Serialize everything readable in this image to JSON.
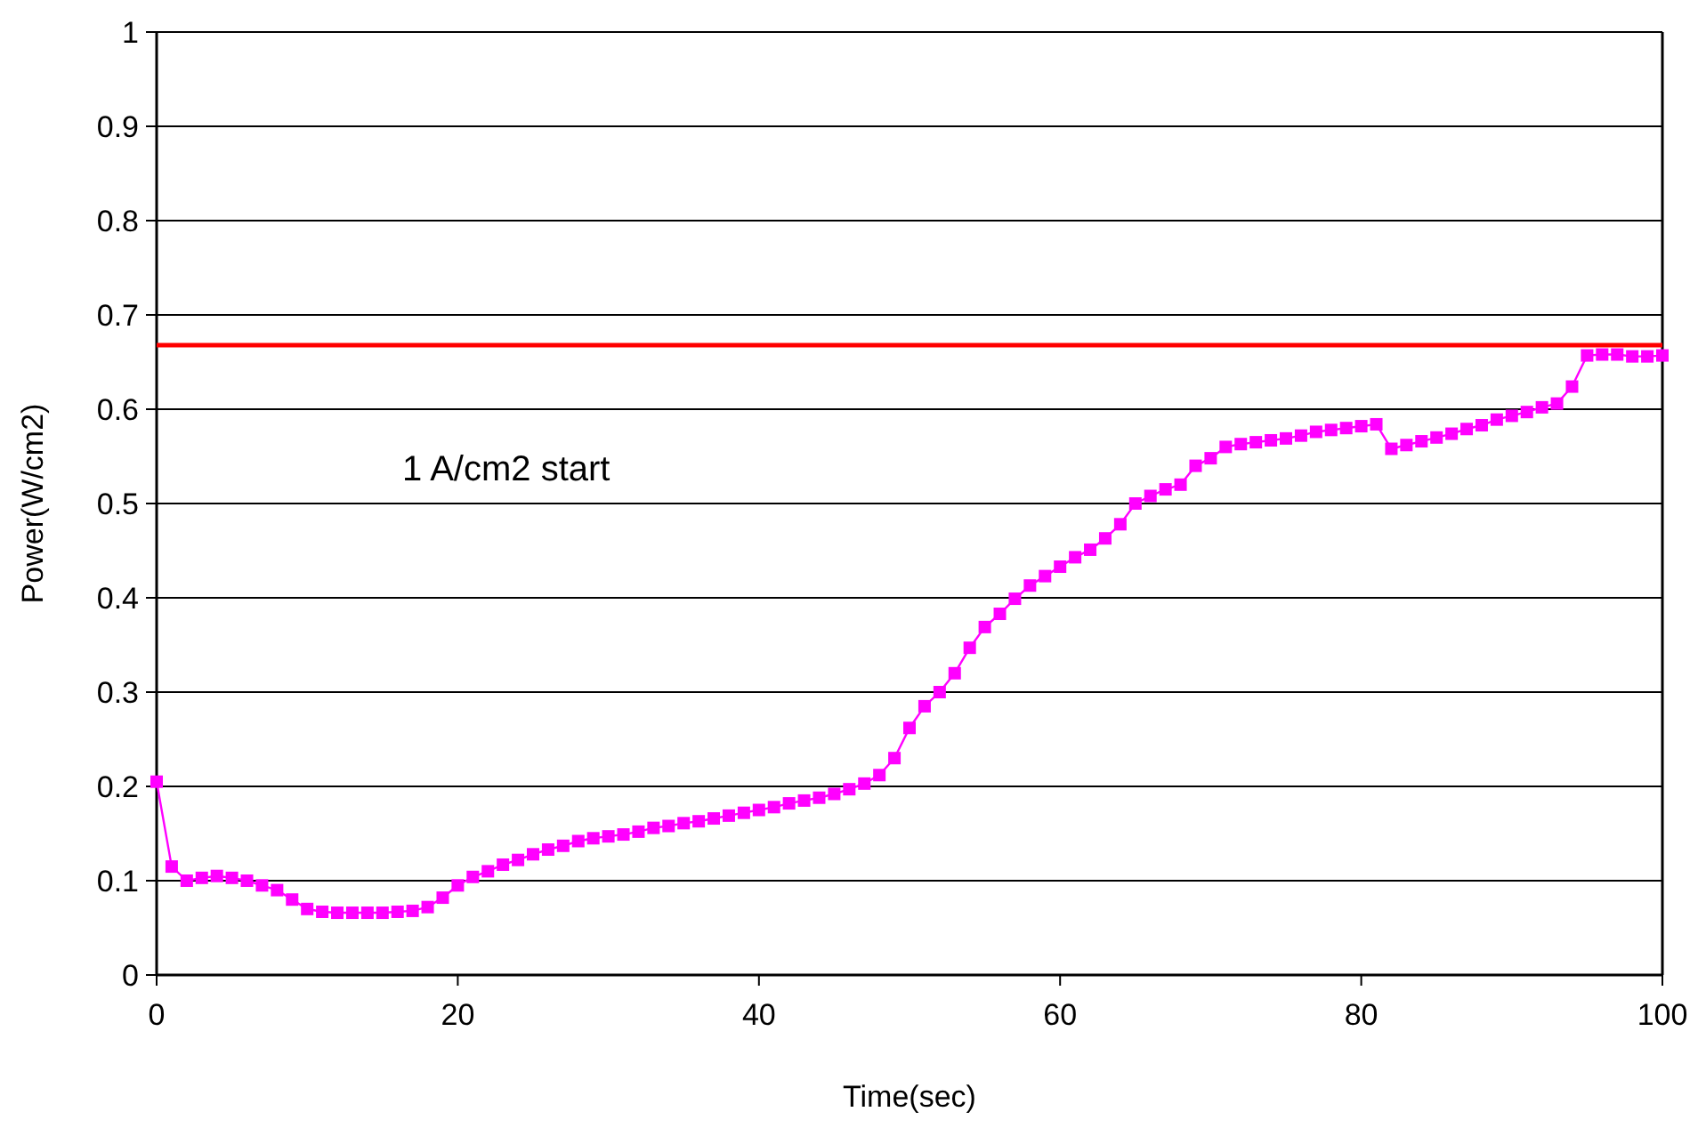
{
  "chart_data": {
    "type": "line",
    "xlabel": "Time(sec)",
    "ylabel": "Power(W/cm2)",
    "annotations": [
      "1 A/cm2 start"
    ],
    "x": [
      0,
      1,
      2,
      3,
      4,
      5,
      6,
      7,
      8,
      9,
      10,
      11,
      12,
      13,
      14,
      15,
      16,
      17,
      18,
      19,
      20,
      21,
      22,
      23,
      24,
      25,
      26,
      27,
      28,
      29,
      30,
      31,
      32,
      33,
      34,
      35,
      36,
      37,
      38,
      39,
      40,
      41,
      42,
      43,
      44,
      45,
      46,
      47,
      48,
      49,
      50,
      51,
      52,
      53,
      54,
      55,
      56,
      57,
      58,
      59,
      60,
      61,
      62,
      63,
      64,
      65,
      66,
      67,
      68,
      69,
      70,
      71,
      72,
      73,
      74,
      75,
      76,
      77,
      78,
      79,
      80,
      81,
      82,
      83,
      84,
      85,
      86,
      87,
      88,
      89,
      90,
      91,
      92,
      93,
      94,
      95,
      96,
      97,
      98,
      99,
      100
    ],
    "series": [
      {
        "color": "#ff00ff",
        "values": [
          0.205,
          0.115,
          0.1,
          0.103,
          0.105,
          0.103,
          0.1,
          0.095,
          0.09,
          0.08,
          0.07,
          0.067,
          0.066,
          0.066,
          0.066,
          0.066,
          0.067,
          0.068,
          0.072,
          0.082,
          0.095,
          0.104,
          0.11,
          0.117,
          0.122,
          0.128,
          0.133,
          0.137,
          0.142,
          0.145,
          0.147,
          0.149,
          0.152,
          0.156,
          0.158,
          0.161,
          0.163,
          0.166,
          0.169,
          0.172,
          0.175,
          0.178,
          0.182,
          0.185,
          0.188,
          0.192,
          0.197,
          0.203,
          0.212,
          0.23,
          0.262,
          0.285,
          0.3,
          0.32,
          0.347,
          0.369,
          0.383,
          0.399,
          0.413,
          0.423,
          0.433,
          0.443,
          0.451,
          0.463,
          0.478,
          0.5,
          0.508,
          0.515,
          0.52,
          0.54,
          0.548,
          0.56,
          0.563,
          0.565,
          0.567,
          0.569,
          0.572,
          0.576,
          0.578,
          0.58,
          0.582,
          0.584,
          0.558,
          0.562,
          0.566,
          0.57,
          0.574,
          0.579,
          0.583,
          0.589,
          0.593,
          0.597,
          0.602,
          0.606,
          0.624,
          0.657,
          0.658,
          0.658,
          0.656,
          0.656,
          0.657
        ]
      }
    ],
    "ref_lines": [
      {
        "axis": "y",
        "value": 0.668,
        "color": "#ff0000"
      }
    ],
    "xlim": [
      0,
      100
    ],
    "xticks": [
      0,
      20,
      40,
      60,
      80,
      100
    ],
    "ylim": [
      0,
      1
    ],
    "yticks": [
      0,
      0.1,
      0.2,
      0.3,
      0.4,
      0.5,
      0.6,
      0.7,
      0.8,
      0.9,
      1
    ],
    "grid": "y",
    "marker": "square",
    "line_style": "solid"
  }
}
